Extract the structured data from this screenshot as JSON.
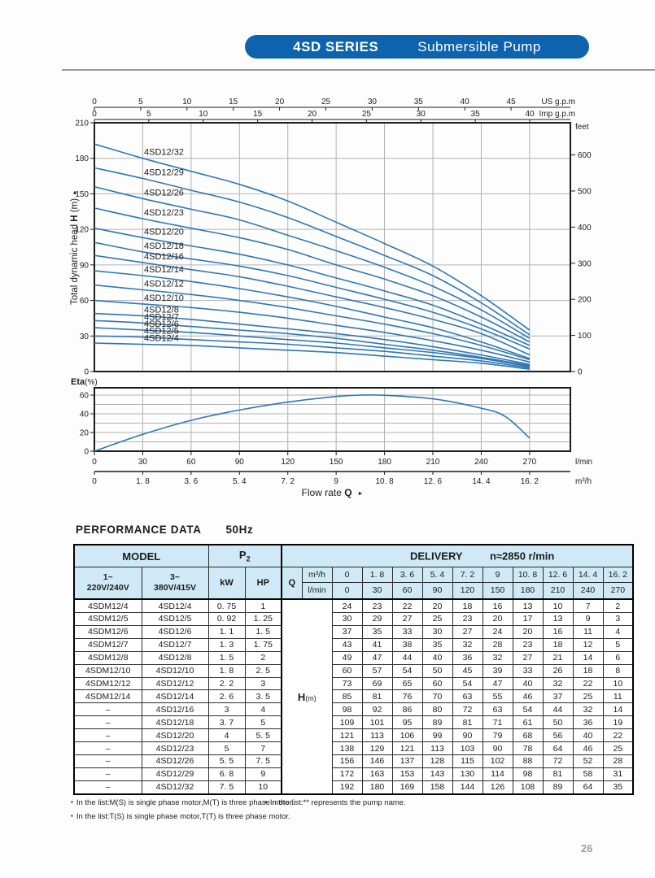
{
  "banner": {
    "series_label": "4SD SERIES",
    "product_label": "Submersible Pump"
  },
  "colors": {
    "accent_blue": "#0d63ae",
    "curve_blue": "#2e77b5",
    "table_header_bg": "#cfe9f6",
    "grid_gray": "#b2b2b2"
  },
  "chart_data": [
    {
      "type": "line",
      "name": "pump-head-curves",
      "ylabel_parts": [
        "Total dynamic head ",
        "H",
        " (m)"
      ],
      "ylim": [
        0,
        210
      ],
      "y_ticks": [
        0,
        30,
        60,
        90,
        120,
        150,
        180,
        210
      ],
      "right_axis": {
        "label": "feet",
        "ticks": [
          0,
          100,
          200,
          300,
          400,
          500,
          600
        ]
      },
      "top_axes": [
        {
          "label": "US g.p.m",
          "ticks": [
            0,
            5,
            10,
            15,
            20,
            25,
            30,
            35,
            40,
            45
          ]
        },
        {
          "label": "Imp g.p.m",
          "ticks": [
            0,
            5,
            10,
            15,
            20,
            25,
            30,
            35,
            40
          ]
        }
      ],
      "x_lmin": [
        0,
        30,
        60,
        90,
        120,
        150,
        180,
        210,
        240,
        270
      ],
      "series": [
        {
          "name": "4SD12/32",
          "values": [
            192,
            180,
            169,
            158,
            144,
            126,
            108,
            89,
            64,
            35
          ]
        },
        {
          "name": "4SD12/29",
          "values": [
            172,
            163,
            153,
            143,
            130,
            114,
            98,
            81,
            58,
            31
          ]
        },
        {
          "name": "4SD12/26",
          "values": [
            156,
            146,
            137,
            128,
            115,
            102,
            88,
            72,
            52,
            28
          ]
        },
        {
          "name": "4SD12/23",
          "values": [
            138,
            129,
            121,
            113,
            103,
            90,
            78,
            64,
            46,
            25
          ]
        },
        {
          "name": "4SD12/20",
          "values": [
            121,
            113,
            106,
            99,
            90,
            79,
            68,
            56,
            40,
            22
          ]
        },
        {
          "name": "4SD12/18",
          "values": [
            109,
            101,
            95,
            89,
            81,
            71,
            61,
            50,
            36,
            19
          ]
        },
        {
          "name": "4SD12/16",
          "values": [
            98,
            92,
            86,
            80,
            72,
            63,
            54,
            44,
            32,
            14
          ]
        },
        {
          "name": "4SD12/14",
          "values": [
            85,
            81,
            76,
            70,
            63,
            55,
            46,
            37,
            25,
            11
          ]
        },
        {
          "name": "4SD12/12",
          "values": [
            73,
            69,
            65,
            60,
            54,
            47,
            40,
            32,
            22,
            10
          ]
        },
        {
          "name": "4SD12/10",
          "values": [
            60,
            57,
            54,
            50,
            45,
            39,
            33,
            26,
            18,
            8
          ]
        },
        {
          "name": "4SD12/8",
          "values": [
            49,
            47,
            44,
            40,
            36,
            32,
            27,
            21,
            14,
            6
          ]
        },
        {
          "name": "4SD12/7",
          "values": [
            43,
            41,
            38,
            35,
            32,
            28,
            23,
            18,
            12,
            5
          ]
        },
        {
          "name": "4SD12/6",
          "values": [
            37,
            35,
            33,
            30,
            27,
            24,
            20,
            16,
            11,
            4
          ]
        },
        {
          "name": "4SD12/5",
          "values": [
            30,
            29,
            27,
            25,
            23,
            20,
            17,
            13,
            9,
            3
          ]
        },
        {
          "name": "4SD12/4",
          "values": [
            24,
            23,
            22,
            20,
            18,
            16,
            13,
            10,
            7,
            2
          ]
        }
      ]
    },
    {
      "type": "line",
      "name": "efficiency-curve",
      "ylabel_base": "Eta",
      "ylabel_sub": "(%)",
      "ylim": [
        0,
        68
      ],
      "y_ticks": [
        0,
        20,
        40,
        60
      ],
      "y_grid": [
        10,
        20,
        30,
        40,
        50,
        60
      ],
      "x": [
        0,
        30,
        60,
        90,
        120,
        150,
        165,
        180,
        210,
        240,
        255,
        270
      ],
      "values": [
        0,
        18,
        33,
        44,
        52.5,
        58.5,
        60,
        59.8,
        56,
        46,
        37,
        14
      ],
      "x_axes": [
        {
          "label": "l/min",
          "ticks": [
            "0",
            "30",
            "60",
            "90",
            "120",
            "150",
            "180",
            "210",
            "240",
            "270"
          ]
        },
        {
          "label": "m³/h",
          "ticks": [
            "0",
            "1. 8",
            "3. 6",
            "5. 4",
            "7. 2",
            "9",
            "10. 8",
            "12. 6",
            "14. 4",
            "16. 2"
          ]
        }
      ],
      "xlabel_parts": [
        "Flow  rate  ",
        "Q"
      ]
    }
  ],
  "table": {
    "title": "PERFORMANCE  DATA",
    "freq": "50Hz",
    "header": {
      "model": "MODEL",
      "p2_base": "P",
      "p2_sub": "2",
      "delivery": "DELIVERY",
      "speed": "n≈2850 r/min",
      "ph1_line1": "1~",
      "ph1_line2": "220V/240V",
      "ph3_line1": "3~",
      "ph3_line2": "380V/415V",
      "kw": "kW",
      "hp": "HP",
      "q": "Q",
      "m3h": "m³/h",
      "lmin": "l/min",
      "m3h_values": [
        "0",
        "1. 8",
        "3. 6",
        "5. 4",
        "7. 2",
        "9",
        "10. 8",
        "12. 6",
        "14. 4",
        "16. 2"
      ],
      "lmin_values": [
        "0",
        "30",
        "60",
        "90",
        "120",
        "150",
        "180",
        "210",
        "240",
        "270"
      ],
      "hm_base": "H",
      "hm_sub": "(m)"
    },
    "rows": [
      {
        "m1": "4SDM12/4",
        "m2": "4SD12/4",
        "kw": "0. 75",
        "hp": "1",
        "h": [
          "24",
          "23",
          "22",
          "20",
          "18",
          "16",
          "13",
          "10",
          "7",
          "2"
        ]
      },
      {
        "m1": "4SDM12/5",
        "m2": "4SD12/5",
        "kw": "0. 92",
        "hp": "1. 25",
        "h": [
          "30",
          "29",
          "27",
          "25",
          "23",
          "20",
          "17",
          "13",
          "9",
          "3"
        ]
      },
      {
        "m1": "4SDM12/6",
        "m2": "4SD12/6",
        "kw": "1. 1",
        "hp": "1. 5",
        "h": [
          "37",
          "35",
          "33",
          "30",
          "27",
          "24",
          "20",
          "16",
          "11",
          "4"
        ]
      },
      {
        "m1": "4SDM12/7",
        "m2": "4SD12/7",
        "kw": "1. 3",
        "hp": "1. 75",
        "h": [
          "43",
          "41",
          "38",
          "35",
          "32",
          "28",
          "23",
          "18",
          "12",
          "5"
        ]
      },
      {
        "m1": "4SDM12/8",
        "m2": "4SD12/8",
        "kw": "1. 5",
        "hp": "2",
        "h": [
          "49",
          "47",
          "44",
          "40",
          "36",
          "32",
          "27",
          "21",
          "14",
          "6"
        ]
      },
      {
        "m1": "4SDM12/10",
        "m2": "4SD12/10",
        "kw": "1. 8",
        "hp": "2. 5",
        "h": [
          "60",
          "57",
          "54",
          "50",
          "45",
          "39",
          "33",
          "26",
          "18",
          "8"
        ]
      },
      {
        "m1": "4SDM12/12",
        "m2": "4SD12/12",
        "kw": "2. 2",
        "hp": "3",
        "h": [
          "73",
          "69",
          "65",
          "60",
          "54",
          "47",
          "40",
          "32",
          "22",
          "10"
        ]
      },
      {
        "m1": "4SDM12/14",
        "m2": "4SD12/14",
        "kw": "2. 6",
        "hp": "3. 5",
        "h": [
          "85",
          "81",
          "76",
          "70",
          "63",
          "55",
          "46",
          "37",
          "25",
          "11"
        ]
      },
      {
        "m1": "–",
        "m2": "4SD12/16",
        "kw": "3",
        "hp": "4",
        "h": [
          "98",
          "92",
          "86",
          "80",
          "72",
          "63",
          "54",
          "44",
          "32",
          "14"
        ]
      },
      {
        "m1": "–",
        "m2": "4SD12/18",
        "kw": "3. 7",
        "hp": "5",
        "h": [
          "109",
          "101",
          "95",
          "89",
          "81",
          "71",
          "61",
          "50",
          "36",
          "19"
        ]
      },
      {
        "m1": "–",
        "m2": "4SD12/20",
        "kw": "4",
        "hp": "5. 5",
        "h": [
          "121",
          "113",
          "106",
          "99",
          "90",
          "79",
          "68",
          "56",
          "40",
          "22"
        ]
      },
      {
        "m1": "–",
        "m2": "4SD12/23",
        "kw": "5",
        "hp": "7",
        "h": [
          "138",
          "129",
          "121",
          "113",
          "103",
          "90",
          "78",
          "64",
          "46",
          "25"
        ]
      },
      {
        "m1": "–",
        "m2": "4SD12/26",
        "kw": "5. 5",
        "hp": "7. 5",
        "h": [
          "156",
          "146",
          "137",
          "128",
          "115",
          "102",
          "88",
          "72",
          "52",
          "28"
        ]
      },
      {
        "m1": "–",
        "m2": "4SD12/29",
        "kw": "6. 8",
        "hp": "9",
        "h": [
          "172",
          "163",
          "153",
          "143",
          "130",
          "114",
          "98",
          "81",
          "58",
          "31"
        ]
      },
      {
        "m1": "–",
        "m2": "4SD12/32",
        "kw": "7. 5",
        "hp": "10",
        "h": [
          "192",
          "180",
          "169",
          "158",
          "144",
          "126",
          "108",
          "89",
          "64",
          "35"
        ]
      }
    ]
  },
  "footnotes": {
    "bullet": "▪",
    "line1a": "In the list:M(S) is single phase motor,M(T) is three phase motor.",
    "line1b": "In the list:** represents the pump name.",
    "line2": "In the list:T(S) is single phase motor,T(T) is three phase motor."
  },
  "page_number": "26"
}
